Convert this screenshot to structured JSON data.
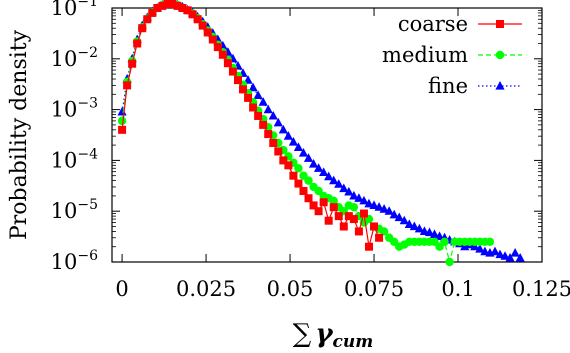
{
  "chart_data": {
    "type": "scatter",
    "title": "",
    "xlabel": "∑ γcum",
    "xlabel_parts": {
      "sum": "∑",
      "gamma": "γ",
      "subscript": "cum"
    },
    "ylabel": "Probability density",
    "xlim": [
      -0.003,
      0.125
    ],
    "ylim": [
      1e-06,
      0.1
    ],
    "yscale": "log",
    "grid": false,
    "legend_position": "top-right",
    "x_ticks": [
      {
        "value": 0,
        "label": "0"
      },
      {
        "value": 0.025,
        "label": "0.025"
      },
      {
        "value": 0.05,
        "label": "0.05"
      },
      {
        "value": 0.075,
        "label": "0.075"
      },
      {
        "value": 0.1,
        "label": "0.1"
      },
      {
        "value": 0.125,
        "label": "0.125"
      }
    ],
    "y_ticks": [
      {
        "value": 1e-06,
        "base": "10",
        "exp": "−6"
      },
      {
        "value": 1e-05,
        "base": "10",
        "exp": "−5"
      },
      {
        "value": 0.0001,
        "base": "10",
        "exp": "−4"
      },
      {
        "value": 0.001,
        "base": "10",
        "exp": "−3"
      },
      {
        "value": 0.01,
        "base": "10",
        "exp": "−2"
      },
      {
        "value": 0.1,
        "base": "10",
        "exp": "−1"
      }
    ],
    "series": [
      {
        "name": "coarse",
        "color": "#ff0000",
        "marker": "square",
        "line": "solid",
        "x": [
          0,
          0.0015,
          0.003,
          0.0045,
          0.006,
          0.0075,
          0.009,
          0.0105,
          0.012,
          0.0135,
          0.015,
          0.0165,
          0.018,
          0.0195,
          0.021,
          0.0225,
          0.024,
          0.0255,
          0.027,
          0.0285,
          0.03,
          0.0315,
          0.033,
          0.0345,
          0.036,
          0.0375,
          0.039,
          0.0405,
          0.042,
          0.0435,
          0.045,
          0.0465,
          0.048,
          0.0495,
          0.051,
          0.0525,
          0.054,
          0.0555,
          0.057,
          0.0585,
          0.06,
          0.0615,
          0.063,
          0.0645,
          0.066,
          0.0675,
          0.069,
          0.0705,
          0.072,
          0.0735,
          0.075,
          0.0765
        ],
        "y": [
          0.0004,
          0.003,
          0.008,
          0.02,
          0.04,
          0.06,
          0.08,
          0.1,
          0.11,
          0.12,
          0.12,
          0.11,
          0.1,
          0.09,
          0.075,
          0.06,
          0.045,
          0.033,
          0.024,
          0.017,
          0.012,
          0.0082,
          0.0056,
          0.0038,
          0.0025,
          0.0017,
          0.0011,
          0.00075,
          0.0005,
          0.00033,
          0.00022,
          0.00015,
          0.0001,
          8e-05,
          5e-05,
          3.5e-05,
          2.5e-05,
          1.8e-05,
          1.3e-05,
          1e-05,
          1.5e-05,
          6.5e-06,
          1.2e-05,
          8e-06,
          5e-06,
          8e-06,
          7e-06,
          4e-06,
          9e-06,
          2e-06,
          5e-06,
          3e-06
        ]
      },
      {
        "name": "medium",
        "color": "#00ff00",
        "marker": "circle",
        "line": "dashed",
        "x": [
          0,
          0.0015,
          0.003,
          0.0045,
          0.006,
          0.0075,
          0.009,
          0.0105,
          0.012,
          0.0135,
          0.015,
          0.0165,
          0.018,
          0.0195,
          0.021,
          0.0225,
          0.024,
          0.0255,
          0.027,
          0.0285,
          0.03,
          0.0315,
          0.033,
          0.0345,
          0.036,
          0.0375,
          0.039,
          0.0405,
          0.042,
          0.0435,
          0.045,
          0.0465,
          0.048,
          0.0495,
          0.051,
          0.0525,
          0.054,
          0.0555,
          0.057,
          0.0585,
          0.06,
          0.0615,
          0.063,
          0.0645,
          0.066,
          0.0675,
          0.069,
          0.0705,
          0.072,
          0.0735,
          0.075,
          0.0765,
          0.078,
          0.0795,
          0.081,
          0.0825,
          0.084,
          0.0855,
          0.087,
          0.0885,
          0.09,
          0.0915,
          0.093,
          0.0945,
          0.096,
          0.0975,
          0.099,
          0.1005,
          0.102,
          0.1035,
          0.105,
          0.1065,
          0.108,
          0.1095
        ],
        "y": [
          0.0006,
          0.0035,
          0.009,
          0.022,
          0.042,
          0.062,
          0.082,
          0.1,
          0.115,
          0.12,
          0.12,
          0.115,
          0.1,
          0.09,
          0.078,
          0.063,
          0.048,
          0.036,
          0.027,
          0.019,
          0.0135,
          0.0095,
          0.0066,
          0.0046,
          0.0031,
          0.0021,
          0.0014,
          0.00095,
          0.00065,
          0.00045,
          0.00031,
          0.00022,
          0.00016,
          0.00012,
          9e-05,
          7e-05,
          5e-05,
          4e-05,
          3e-05,
          2.5e-05,
          2e-05,
          1.8e-05,
          1.6e-05,
          1.2e-05,
          1e-05,
          1.3e-05,
          1.2e-05,
          8e-06,
          6e-06,
          7e-06,
          5e-06,
          4.5e-06,
          4e-06,
          3e-06,
          2.5e-06,
          2e-06,
          2.2e-06,
          2.5e-06,
          2.5e-06,
          2.5e-06,
          2.5e-06,
          2.5e-06,
          2.5e-06,
          2e-06,
          2.5e-06,
          1e-06,
          2.5e-06,
          2.5e-06,
          2.5e-06,
          2.5e-06,
          2.5e-06,
          2.5e-06,
          2.5e-06,
          2.5e-06
        ]
      },
      {
        "name": "fine",
        "color": "#0000ff",
        "marker": "triangle",
        "line": "dotted",
        "x": [
          0,
          0.0015,
          0.003,
          0.0045,
          0.006,
          0.0075,
          0.009,
          0.0105,
          0.012,
          0.0135,
          0.015,
          0.0165,
          0.018,
          0.0195,
          0.021,
          0.0225,
          0.024,
          0.0255,
          0.027,
          0.0285,
          0.03,
          0.0315,
          0.033,
          0.0345,
          0.036,
          0.0375,
          0.039,
          0.0405,
          0.042,
          0.0435,
          0.045,
          0.0465,
          0.048,
          0.0495,
          0.051,
          0.0525,
          0.054,
          0.0555,
          0.057,
          0.0585,
          0.06,
          0.0615,
          0.063,
          0.0645,
          0.066,
          0.0675,
          0.069,
          0.0705,
          0.072,
          0.0735,
          0.075,
          0.0765,
          0.078,
          0.0795,
          0.081,
          0.0825,
          0.084,
          0.0855,
          0.087,
          0.0885,
          0.09,
          0.0915,
          0.093,
          0.0945,
          0.096,
          0.0975,
          0.099,
          0.1005,
          0.102,
          0.1035,
          0.105,
          0.1065,
          0.108,
          0.1095,
          0.111,
          0.1125,
          0.114,
          0.1155,
          0.117,
          0.1185
        ],
        "y": [
          0.0009,
          0.004,
          0.01,
          0.024,
          0.045,
          0.065,
          0.085,
          0.1,
          0.115,
          0.12,
          0.12,
          0.115,
          0.105,
          0.092,
          0.08,
          0.067,
          0.054,
          0.042,
          0.032,
          0.024,
          0.018,
          0.0135,
          0.01,
          0.0072,
          0.0052,
          0.0038,
          0.0027,
          0.0019,
          0.0014,
          0.001,
          0.00075,
          0.00055,
          0.0004,
          0.0003,
          0.00023,
          0.00018,
          0.00014,
          0.00011,
          8.5e-05,
          7e-05,
          5.8e-05,
          4.8e-05,
          4e-05,
          3.4e-05,
          2.8e-05,
          2.4e-05,
          2e-05,
          1.8e-05,
          1.6e-05,
          1.4e-05,
          1.3e-05,
          1.2e-05,
          1.1e-05,
          1e-05,
          8.5e-06,
          7.5e-06,
          6.5e-06,
          5.5e-06,
          5e-06,
          4.5e-06,
          4e-06,
          3.8e-06,
          3.5e-06,
          3.2e-06,
          3e-06,
          2.7e-06,
          2.5e-06,
          2.3e-06,
          2e-06,
          2.2e-06,
          2e-06,
          1.8e-06,
          1.6e-06,
          1.5e-06,
          1.6e-06,
          1.4e-06,
          1.3e-06,
          1.2e-06,
          1.5e-06,
          1.2e-06
        ]
      }
    ]
  }
}
